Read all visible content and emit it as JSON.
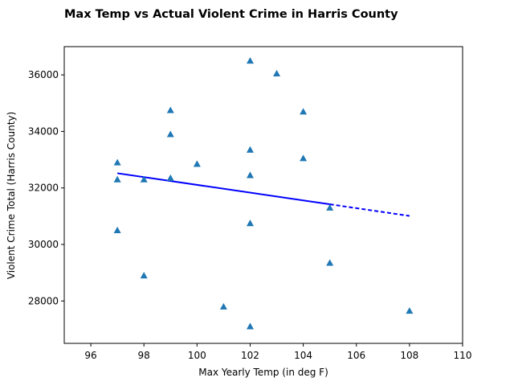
{
  "chart_data": {
    "type": "scatter",
    "title": "Max Temp vs Actual Violent Crime in Harris County",
    "xlabel": "Max Yearly Temp (in deg F)",
    "ylabel": "Violent Crime Total (Harris County)",
    "xlim": [
      95,
      110
    ],
    "ylim": [
      26500,
      37000
    ],
    "xticks": [
      96,
      98,
      100,
      102,
      104,
      106,
      108,
      110
    ],
    "yticks": [
      28000,
      30000,
      32000,
      34000,
      36000
    ],
    "grid": false,
    "marker": "triangle",
    "points": [
      {
        "x": 97,
        "y": 32900
      },
      {
        "x": 97,
        "y": 32300
      },
      {
        "x": 97,
        "y": 30500
      },
      {
        "x": 98,
        "y": 32300
      },
      {
        "x": 98,
        "y": 28900
      },
      {
        "x": 99,
        "y": 34750
      },
      {
        "x": 99,
        "y": 33900
      },
      {
        "x": 99,
        "y": 32350
      },
      {
        "x": 100,
        "y": 32850
      },
      {
        "x": 101,
        "y": 27800
      },
      {
        "x": 102,
        "y": 36500
      },
      {
        "x": 102,
        "y": 33350
      },
      {
        "x": 102,
        "y": 32450
      },
      {
        "x": 102,
        "y": 30750
      },
      {
        "x": 102,
        "y": 27100
      },
      {
        "x": 103,
        "y": 36050
      },
      {
        "x": 104,
        "y": 34700
      },
      {
        "x": 104,
        "y": 33050
      },
      {
        "x": 105,
        "y": 31300
      },
      {
        "x": 105,
        "y": 29350
      },
      {
        "x": 108,
        "y": 27650
      }
    ],
    "regression": {
      "x_start": 97,
      "y_start": 32520,
      "x_end": 108,
      "y_end": 31010,
      "solid_until_x": 105
    },
    "colors": {
      "points": "#1f77b4",
      "regression": "#0000ff"
    }
  }
}
